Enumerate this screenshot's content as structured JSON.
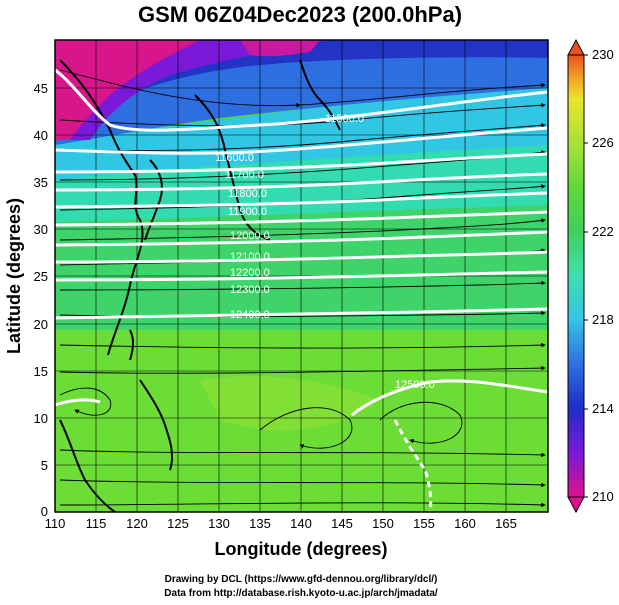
{
  "title": "GSM 06Z04Dec2023 (200.0hPa)",
  "xlabel": "Longitude (degrees)",
  "ylabel": "Latitude  (degrees)",
  "credits": [
    "Drawing by DCL (https://www.gfd-dennou.org/library/dcl/)",
    "Data from http://database.rish.kyoto-u.ac.jp/arch/jmadata/"
  ],
  "map": {
    "lon_range": [
      110,
      170
    ],
    "lat_range": [
      0,
      50
    ],
    "x_ticks": [
      "110",
      "115",
      "120",
      "125",
      "130",
      "135",
      "140",
      "145",
      "150",
      "155",
      "160",
      "165"
    ],
    "y_ticks": [
      "0",
      "5",
      "10",
      "15",
      "20",
      "25",
      "30",
      "35",
      "40",
      "45"
    ],
    "contour_labels": [
      "11500.0",
      "11600.0",
      "11700.0",
      "11800.0",
      "11900.0",
      "12000.0",
      "12100.0",
      "12200.0",
      "12300.0",
      "12400.0",
      "12500.0"
    ],
    "streamlines": "wind streamlines with arrows",
    "white_contours": "geopotential height"
  },
  "colorbar": {
    "range": [
      210,
      230
    ],
    "ticks": [
      "210",
      "214",
      "218",
      "222",
      "226",
      "230"
    ],
    "colors": [
      "#e0108c",
      "#7a1ad8",
      "#1f2ec8",
      "#2f6fe0",
      "#34c4e6",
      "#3fe0b0",
      "#40d060",
      "#5fd83a",
      "#a6e238",
      "#e9e52a",
      "#f1a025",
      "#e8501c"
    ]
  },
  "chart_data": {
    "type": "heatmap",
    "title": "GSM 06Z04Dec2023 (200.0hPa)",
    "xlabel": "Longitude (degrees)",
    "ylabel": "Latitude  (degrees)",
    "xlim": [
      110,
      170
    ],
    "ylim": [
      0,
      50
    ],
    "clim": [
      210,
      230
    ],
    "contour_levels": [
      11500,
      11600,
      11700,
      11800,
      11900,
      12000,
      12100,
      12200,
      12300,
      12400,
      12500
    ]
  }
}
